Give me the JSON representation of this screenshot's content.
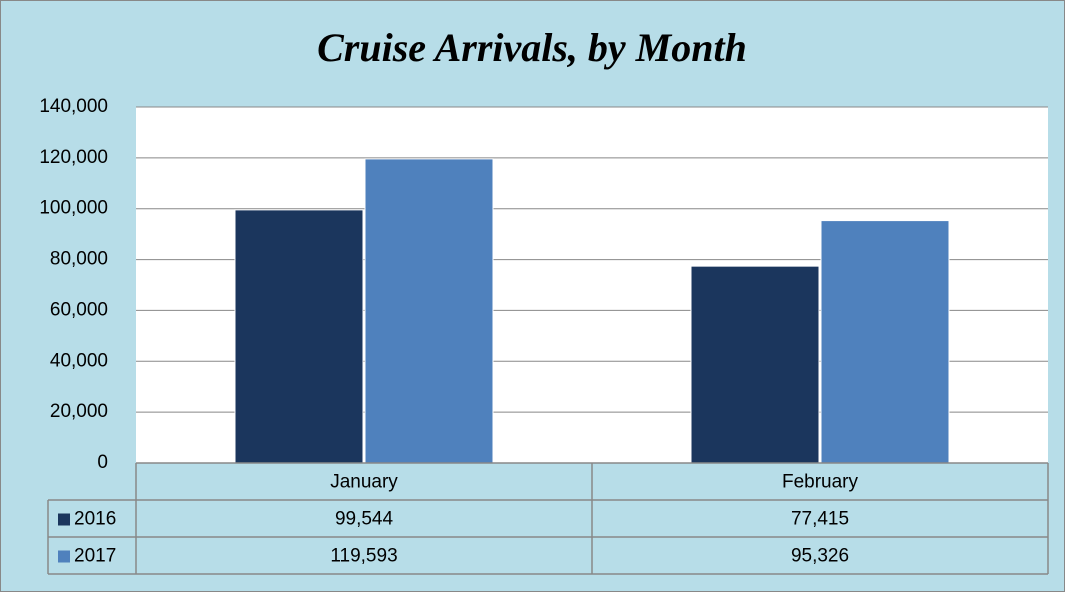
{
  "chart_data": {
    "type": "bar",
    "title": "Cruise Arrivals, by Month",
    "categories": [
      "January",
      "February"
    ],
    "series": [
      {
        "name": "2016",
        "color": "#1b365d",
        "values": [
          99544,
          77415
        ],
        "value_labels": [
          "99,544",
          "77,415"
        ]
      },
      {
        "name": "2017",
        "color": "#4f81bd",
        "values": [
          119593,
          95326
        ],
        "value_labels": [
          "119,593",
          "95,326"
        ]
      }
    ],
    "ylim": [
      0,
      140000
    ],
    "yticks": [
      0,
      {
        "value": 20000,
        "label": "20,000"
      },
      {
        "value": 40000,
        "label": "40,000"
      },
      {
        "value": 60000,
        "label": "60,000"
      },
      {
        "value": 80000,
        "label": "80,000"
      },
      {
        "value": 100000,
        "label": "100,000"
      },
      {
        "value": 120000,
        "label": "120,000"
      },
      {
        "value": 140000,
        "label": "140,000"
      }
    ],
    "grid": true
  }
}
